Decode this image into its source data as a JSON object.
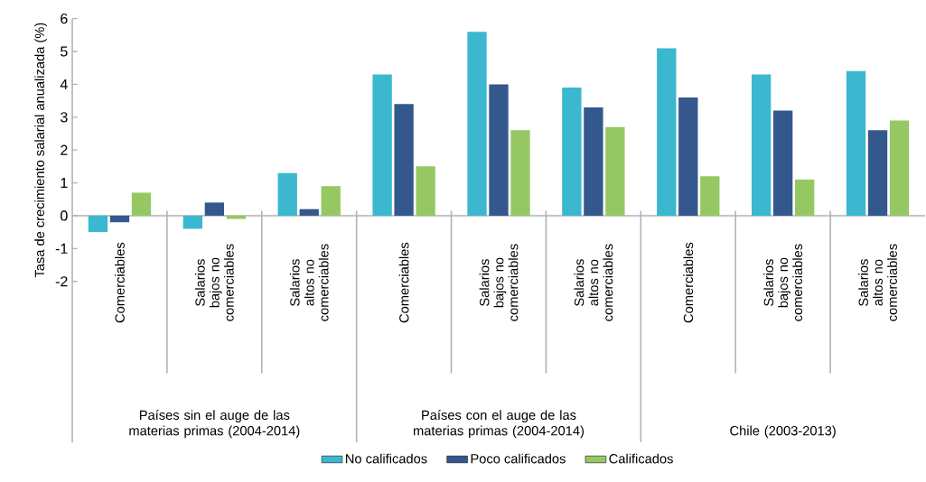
{
  "chart_data": {
    "type": "bar",
    "ylabel": "Tasa de crecimiento salarial anualizada  (%)",
    "categories": [
      "Comerciables",
      "Salarios bajos no comerciables",
      "Salarios altos no comerciables",
      "Comerciables",
      "Salarios bajos no comerciables",
      "Salarios altos no comerciables",
      "Comerciables",
      "Salarios bajos no comerciables",
      "Salarios altos no comerciables"
    ],
    "series": [
      {
        "name": "No calificados",
        "color": "#3bb8cf",
        "values": [
          -0.5,
          -0.4,
          1.3,
          4.3,
          5.6,
          3.9,
          5.1,
          4.3,
          4.4
        ]
      },
      {
        "name": "Poco calificados",
        "color": "#34588e",
        "values": [
          -0.2,
          0.4,
          0.2,
          3.4,
          4.0,
          3.3,
          3.6,
          3.2,
          2.6
        ]
      },
      {
        "name": "Calificados",
        "color": "#95c862",
        "values": [
          0.7,
          -0.1,
          0.9,
          1.5,
          2.6,
          2.7,
          1.2,
          1.1,
          2.9
        ]
      }
    ],
    "annotations": [
      "Países sin el auge de las materias primas  (2004-2014)",
      "Países con el auge de las materias primas (2004-2014)",
      "Chile  (2003-2013)"
    ],
    "ylim": [
      -6.9,
      6
    ],
    "yticks": [
      -2,
      -1,
      0,
      1,
      2,
      3,
      4,
      5,
      6
    ],
    "grid": false,
    "legend": "bottom"
  }
}
